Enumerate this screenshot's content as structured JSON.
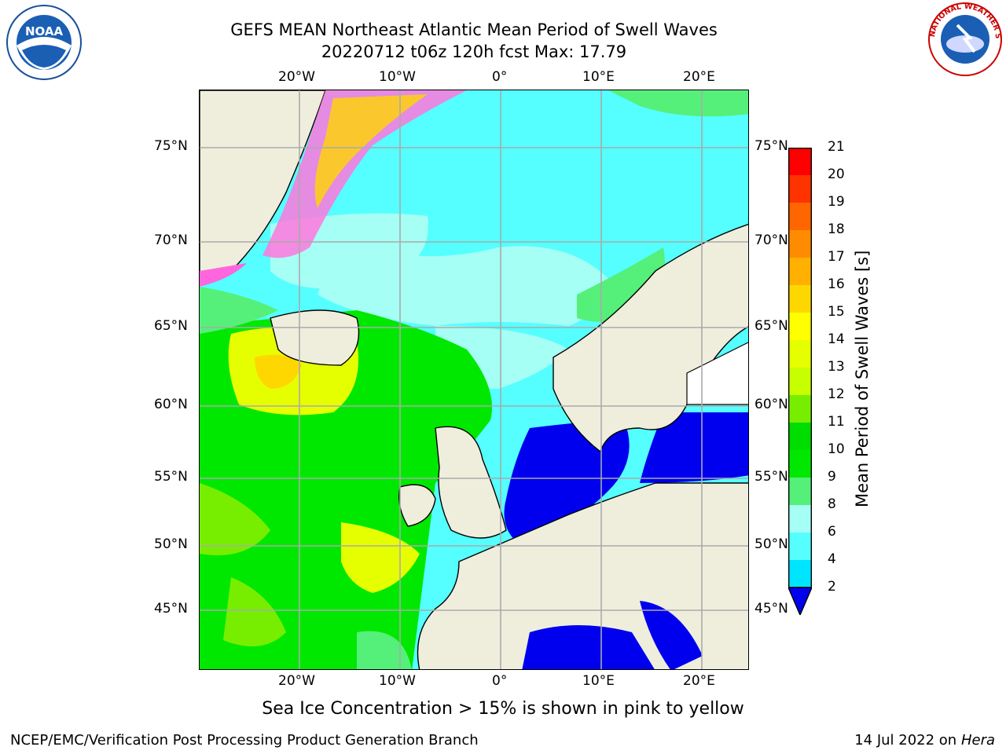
{
  "title": {
    "line1": "GEFS MEAN Northeast Atlantic Mean Period of Swell Waves",
    "line2": "20220712 t06z 120h fcst   Max: 17.79"
  },
  "map": {
    "lon_labels": [
      "20°W",
      "10°W",
      "0°",
      "10°E",
      "20°E"
    ],
    "lat_labels_left": [
      "75°N",
      "70°N",
      "65°N",
      "60°N",
      "55°N",
      "50°N",
      "45°N"
    ],
    "lat_labels_right": [
      "75°N",
      "70°N",
      "65°N",
      "60°N",
      "55°N",
      "50°N",
      "45°N"
    ]
  },
  "colorbar": {
    "label": "Mean Period of Swell Waves [s]",
    "ticks": [
      "21",
      "20",
      "19",
      "18",
      "17",
      "16",
      "15",
      "14",
      "13",
      "12",
      "11",
      "10",
      "9",
      "8",
      "6",
      "4",
      "2"
    ],
    "colors": [
      "#ff0000",
      "#ff3300",
      "#ff6600",
      "#ff8c00",
      "#ffb000",
      "#ffd700",
      "#ffff00",
      "#e6ff00",
      "#c8ff00",
      "#77ee00",
      "#00dd00",
      "#00e800",
      "#55f07a",
      "#a6fff4",
      "#55ffff",
      "#00e5ff",
      "#00bfff",
      "#0077ff",
      "#0000ee"
    ]
  },
  "note": "Sea Ice Concentration > 15% is shown in pink to yellow",
  "footer": {
    "left": "NCEP/EMC/Verification Post Processing Product Generation Branch",
    "date": "14 Jul 2022 on ",
    "host": "Hera"
  },
  "logos": {
    "noaa": "NOAA",
    "nws": "NATIONAL WEATHER SERVICE"
  }
}
